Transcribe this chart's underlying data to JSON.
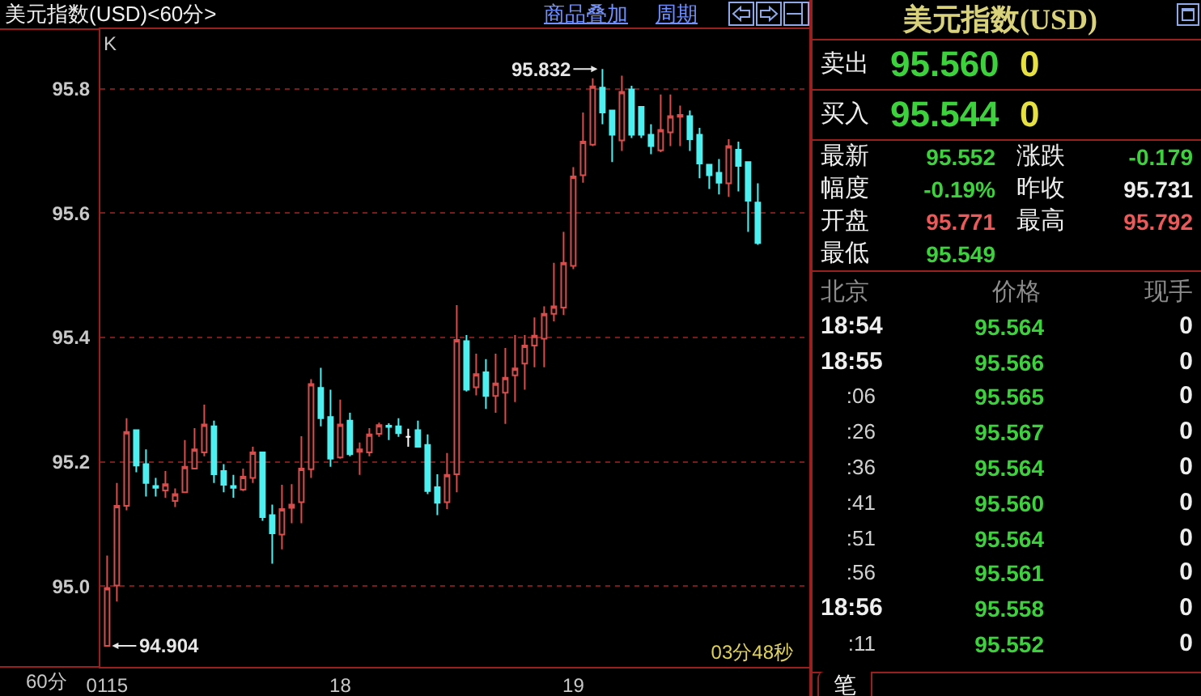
{
  "chart_data": [
    {
      "type": "candlestick",
      "title": "美元指数(USD)<60分>",
      "categories": [
        "0115",
        null,
        null,
        null,
        null,
        null,
        null,
        null,
        null,
        null,
        null,
        null,
        null,
        null,
        null,
        null,
        null,
        null,
        null,
        null,
        null,
        null,
        null,
        null,
        "18",
        null,
        null,
        null,
        null,
        null,
        null,
        null,
        null,
        null,
        null,
        null,
        null,
        null,
        null,
        null,
        null,
        null,
        null,
        null,
        null,
        null,
        null,
        null,
        "19",
        null,
        null,
        null,
        null,
        null,
        null,
        null,
        null,
        null,
        null,
        null,
        null,
        null,
        null,
        null,
        null,
        null,
        null,
        null
      ],
      "ohlc": [
        [
          94.904,
          95.049,
          94.904,
          94.997
        ],
        [
          95.001,
          95.166,
          94.975,
          95.129
        ],
        [
          95.129,
          95.27,
          95.122,
          95.248
        ],
        [
          95.251,
          95.251,
          95.183,
          95.194
        ],
        [
          95.196,
          95.22,
          95.144,
          95.166
        ],
        [
          95.161,
          95.174,
          95.144,
          95.158
        ],
        [
          95.154,
          95.185,
          95.142,
          95.164
        ],
        [
          95.137,
          95.157,
          95.127,
          95.148
        ],
        [
          95.151,
          95.235,
          95.151,
          95.192
        ],
        [
          95.189,
          95.254,
          95.188,
          95.22
        ],
        [
          95.215,
          95.292,
          95.209,
          95.26
        ],
        [
          95.257,
          95.266,
          95.166,
          95.18
        ],
        [
          95.185,
          95.196,
          95.151,
          95.163
        ],
        [
          95.161,
          95.179,
          95.142,
          95.158
        ],
        [
          95.155,
          95.189,
          95.153,
          95.176
        ],
        [
          95.174,
          95.224,
          95.166,
          95.215
        ],
        [
          95.215,
          95.215,
          95.105,
          95.111
        ],
        [
          95.114,
          95.131,
          95.036,
          95.085
        ],
        [
          95.083,
          95.163,
          95.059,
          95.124
        ],
        [
          95.126,
          95.164,
          95.101,
          95.131
        ],
        [
          95.135,
          95.241,
          95.101,
          95.189
        ],
        [
          95.188,
          95.333,
          95.174,
          95.325
        ],
        [
          95.319,
          95.351,
          95.257,
          95.27
        ],
        [
          95.272,
          95.316,
          95.192,
          95.205
        ],
        [
          95.207,
          95.3,
          95.205,
          95.26
        ],
        [
          95.266,
          95.279,
          95.209,
          95.212
        ],
        [
          95.216,
          95.231,
          95.179,
          95.22
        ],
        [
          95.215,
          95.254,
          95.209,
          95.244
        ],
        [
          95.245,
          95.263,
          95.24,
          95.259
        ],
        [
          95.258,
          95.262,
          95.235,
          95.256
        ],
        [
          95.257,
          95.27,
          95.24,
          95.246
        ],
        [
          95.24,
          95.253,
          95.224,
          95.24
        ],
        [
          95.251,
          95.266,
          95.224,
          95.224
        ],
        [
          95.227,
          95.244,
          95.148,
          95.153
        ],
        [
          95.159,
          95.18,
          95.114,
          95.134
        ],
        [
          95.135,
          95.214,
          95.124,
          95.179
        ],
        [
          95.18,
          95.452,
          95.151,
          95.396
        ],
        [
          95.394,
          95.404,
          95.313,
          95.316
        ],
        [
          95.32,
          95.374,
          95.307,
          95.341
        ],
        [
          95.344,
          95.365,
          95.285,
          95.306
        ],
        [
          95.306,
          95.374,
          95.279,
          95.326
        ],
        [
          95.311,
          95.383,
          95.261,
          95.335
        ],
        [
          95.339,
          95.404,
          95.296,
          95.35
        ],
        [
          95.358,
          95.404,
          95.316,
          95.387
        ],
        [
          95.387,
          95.432,
          95.352,
          95.403
        ],
        [
          95.398,
          95.45,
          95.352,
          95.438
        ],
        [
          95.438,
          95.52,
          95.426,
          95.45
        ],
        [
          95.448,
          95.57,
          95.436,
          95.52
        ],
        [
          95.515,
          95.674,
          95.51,
          95.659
        ],
        [
          95.661,
          95.762,
          95.649,
          95.715
        ],
        [
          95.71,
          95.817,
          95.708,
          95.804
        ],
        [
          95.802,
          95.832,
          95.743,
          95.762
        ],
        [
          95.765,
          95.765,
          95.682,
          95.726
        ],
        [
          95.717,
          95.821,
          95.7,
          95.795
        ],
        [
          95.799,
          95.805,
          95.721,
          95.726
        ],
        [
          95.771,
          95.771,
          95.721,
          95.726
        ],
        [
          95.726,
          95.743,
          95.695,
          95.708
        ],
        [
          95.701,
          95.791,
          95.698,
          95.734
        ],
        [
          95.73,
          95.791,
          95.708,
          95.756
        ],
        [
          95.755,
          95.773,
          95.708,
          95.758
        ],
        [
          95.756,
          95.765,
          95.7,
          95.719
        ],
        [
          95.726,
          95.737,
          95.656,
          95.68
        ],
        [
          95.678,
          95.678,
          95.639,
          95.661
        ],
        [
          95.665,
          95.687,
          95.63,
          95.649
        ],
        [
          95.648,
          95.719,
          95.626,
          95.708
        ],
        [
          95.702,
          95.715,
          95.635,
          95.676
        ],
        [
          95.682,
          95.682,
          95.57,
          95.62
        ],
        [
          95.617,
          95.648,
          95.549,
          95.552
        ]
      ],
      "colors": [
        "#d94c4c",
        "#d94c4c",
        "#d94c4c",
        "#4cf0f0",
        "#4cf0f0",
        "#4cf0f0",
        "#d94c4c",
        "#d94c4c",
        "#d94c4c",
        "#d94c4c",
        "#d94c4c",
        "#4cf0f0",
        "#4cf0f0",
        "#4cf0f0",
        "#d94c4c",
        "#d94c4c",
        "#4cf0f0",
        "#4cf0f0",
        "#d94c4c",
        "#d94c4c",
        "#d94c4c",
        "#d94c4c",
        "#4cf0f0",
        "#4cf0f0",
        "#d94c4c",
        "#4cf0f0",
        "#d94c4c",
        "#d94c4c",
        "#d94c4c",
        "#4cf0f0",
        "#4cf0f0",
        "#ffffff",
        "#4cf0f0",
        "#4cf0f0",
        "#4cf0f0",
        "#d94c4c",
        "#d94c4c",
        "#4cf0f0",
        "#d94c4c",
        "#4cf0f0",
        "#d94c4c",
        "#d94c4c",
        "#d94c4c",
        "#d94c4c",
        "#d94c4c",
        "#d94c4c",
        "#d94c4c",
        "#d94c4c",
        "#d94c4c",
        "#d94c4c",
        "#d94c4c",
        "#4cf0f0",
        "#4cf0f0",
        "#d94c4c",
        "#4cf0f0",
        "#4cf0f0",
        "#4cf0f0",
        "#d94c4c",
        "#d94c4c",
        "#d94c4c",
        "#4cf0f0",
        "#4cf0f0",
        "#4cf0f0",
        "#4cf0f0",
        "#d94c4c",
        "#4cf0f0",
        "#4cf0f0",
        "#4cf0f0"
      ],
      "ylim": [
        94.87,
        95.896
      ],
      "yticks": [
        {
          "value": 95,
          "label": "95.0"
        },
        95.2,
        95.4,
        95.6,
        95.8
      ],
      "grid": "y",
      "annotations": [
        "K",
        "95.832",
        "94.904",
        "商品叠加",
        "周期",
        "60分",
        "03分48秒"
      ]
    },
    {
      "type": "other",
      "title": "美元指数(USD)",
      "annotations": [
        "卖出",
        "95.560",
        "0",
        "买入",
        "95.544",
        "0",
        "最新",
        "95.552",
        "涨跌",
        "-0.179",
        "幅度",
        "-0.19%",
        "昨收",
        "95.731",
        "开盘",
        "95.771",
        "最高",
        "95.792",
        "最低",
        "95.549",
        "北京",
        "价格",
        "现手",
        "18:54",
        "95.564",
        "0",
        "18:55",
        "95.566",
        "0",
        ":06",
        "95.565",
        "0",
        ":26",
        "95.567",
        "0",
        ":36",
        "95.564",
        "0",
        ":41",
        "95.560",
        "0",
        ":51",
        "95.564",
        "0",
        ":56",
        "95.561",
        "0",
        "18:56",
        "95.558",
        "0",
        ":11",
        "95.552",
        "0",
        "笔"
      ]
    }
  ]
}
